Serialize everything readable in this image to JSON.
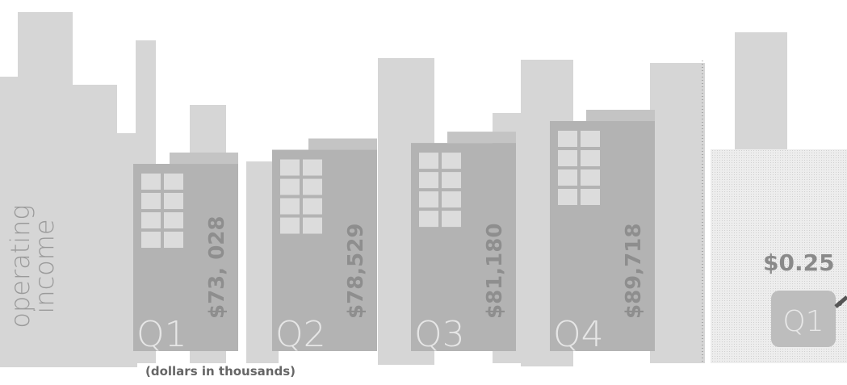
{
  "chart_data": [
    {
      "type": "bar",
      "title": [
        "operating",
        "income"
      ],
      "subtitle": "(dollars in thousands)",
      "categories": [
        "Q1",
        "Q2",
        "Q3",
        "Q4"
      ],
      "values": [
        73028,
        78529,
        81180,
        89718
      ],
      "value_labels": [
        "$73, 028",
        "$78,529",
        "$81,180",
        "$89,718"
      ],
      "color": "#b3b3b3"
    },
    {
      "type": "line",
      "categories": [
        "Q1"
      ],
      "values": [
        0.25
      ],
      "value_labels": [
        "$0.25"
      ],
      "color": "#555555"
    }
  ]
}
